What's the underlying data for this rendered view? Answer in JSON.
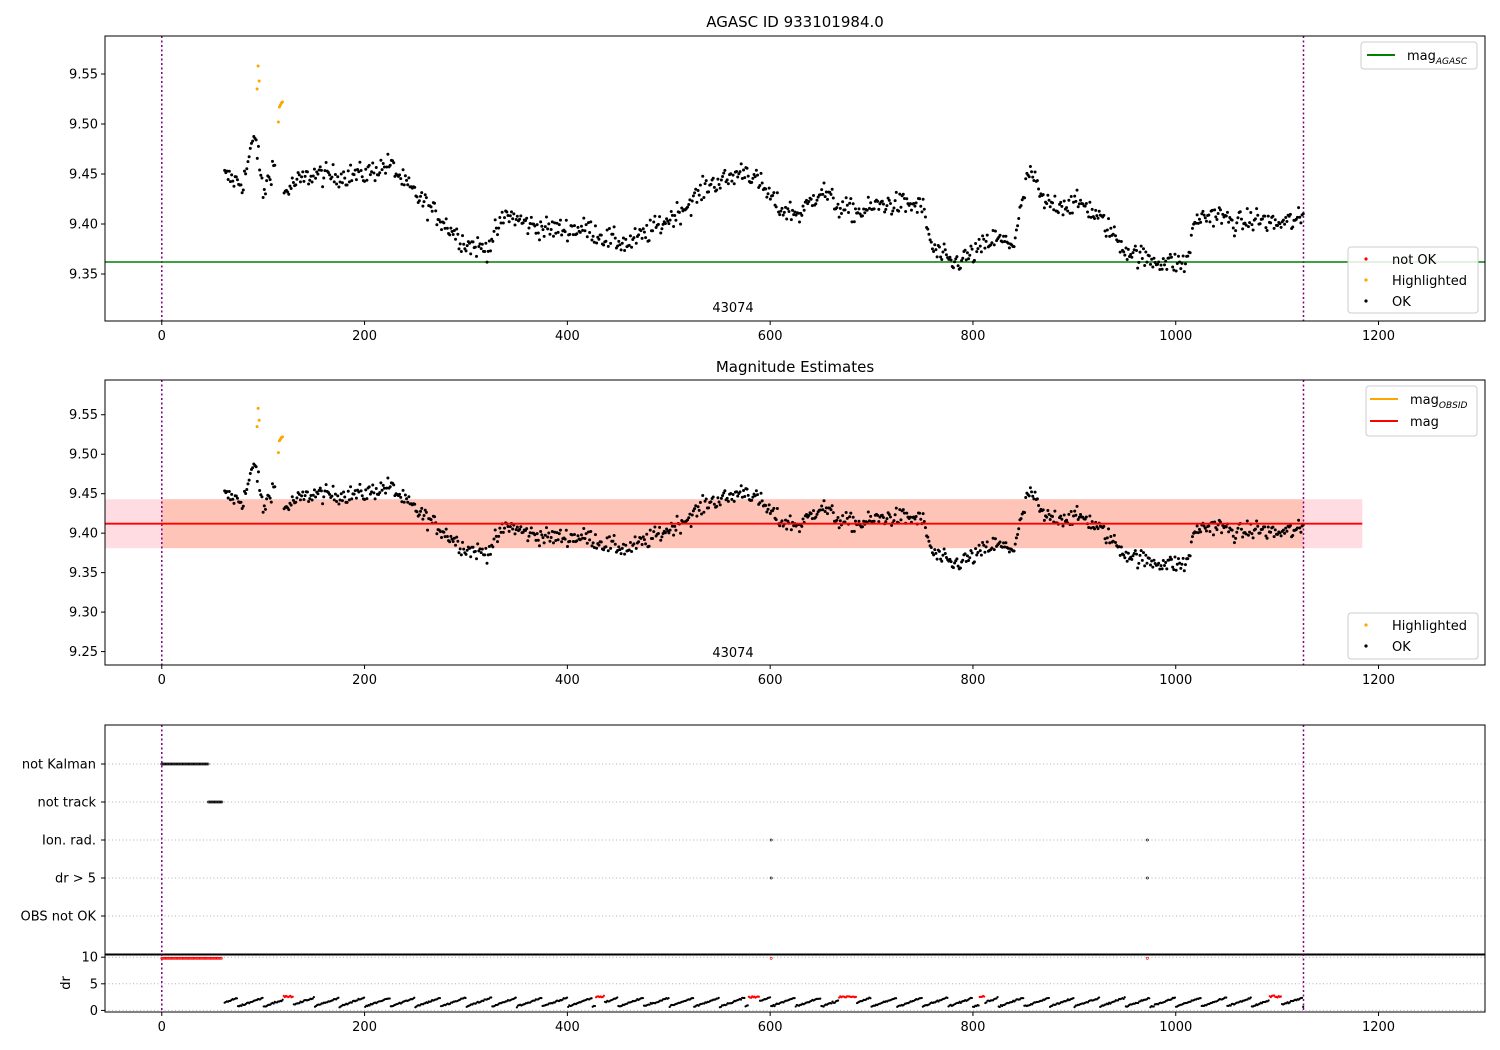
{
  "figure": {
    "title": "AGASC ID 933101984.0",
    "subtitle": "Magnitude Estimates"
  },
  "chart_data": [
    {
      "id": "p1",
      "type": "scatter",
      "title": "AGASC ID 933101984.0",
      "xlim": [
        -56,
        1305
      ],
      "ylim": [
        9.303,
        9.588
      ],
      "xticks": [
        0,
        200,
        400,
        600,
        800,
        1000,
        1200
      ],
      "yticks": [
        9.35,
        9.4,
        9.45,
        9.5,
        9.55
      ],
      "grid": false,
      "obsid_label": "43074",
      "obs_bounds": [
        0,
        1126
      ],
      "hlines": [
        {
          "name": "mag_AGASC",
          "y": 9.362,
          "color": "#008000"
        }
      ],
      "legend_top": {
        "position": "top-right",
        "entries": [
          {
            "label": "mag",
            "sub": "AGASC",
            "kind": "line",
            "color": "#008000"
          }
        ]
      },
      "legend_bottom": {
        "position": "lower-right",
        "entries": [
          {
            "label": "not OK",
            "kind": "dot",
            "color": "#ff0000"
          },
          {
            "label": "Highlighted",
            "kind": "dot",
            "color": "#ffa500"
          },
          {
            "label": "OK",
            "kind": "dot",
            "color": "#000000"
          }
        ]
      },
      "series": [
        {
          "name": "Highlighted",
          "color": "#ffa500",
          "x": [
            94,
            95,
            96,
            115,
            116,
            117,
            118,
            119
          ],
          "y": [
            9.535,
            9.558,
            9.543,
            9.502,
            9.517,
            9.519,
            9.521,
            9.522
          ]
        },
        {
          "name": "OK",
          "color": "#000000",
          "x": [],
          "y": []
        }
      ],
      "trend": {
        "x": [
          62,
          80,
          92,
          100,
          110,
          120,
          130,
          150,
          170,
          200,
          225,
          240,
          260,
          280,
          300,
          320,
          340,
          360,
          380,
          400,
          420,
          440,
          460,
          480,
          500,
          520,
          540,
          560,
          575,
          590,
          610,
          630,
          650,
          670,
          690,
          710,
          730,
          750,
          760,
          780,
          800,
          820,
          840,
          856,
          870,
          890,
          910,
          930,
          950,
          970,
          990,
          1010,
          1020,
          1040,
          1060,
          1080,
          1100,
          1126
        ],
        "y": [
          9.448,
          9.44,
          9.49,
          9.43,
          9.46,
          9.43,
          9.44,
          9.45,
          9.448,
          9.45,
          9.46,
          9.44,
          9.42,
          9.4,
          9.38,
          9.375,
          9.41,
          9.4,
          9.395,
          9.395,
          9.395,
          9.385,
          9.38,
          9.392,
          9.405,
          9.42,
          9.44,
          9.445,
          9.455,
          9.44,
          9.415,
          9.41,
          9.435,
          9.415,
          9.412,
          9.42,
          9.42,
          9.418,
          9.375,
          9.36,
          9.37,
          9.385,
          9.38,
          9.455,
          9.42,
          9.42,
          9.42,
          9.4,
          9.375,
          9.365,
          9.362,
          9.36,
          9.405,
          9.41,
          9.4,
          9.405,
          9.4,
          9.405
        ],
        "noise": 0.011
      }
    },
    {
      "id": "p2",
      "type": "scatter",
      "title": "Magnitude Estimates",
      "xlim": [
        -56,
        1305
      ],
      "ylim": [
        9.233,
        9.594
      ],
      "xticks": [
        0,
        200,
        400,
        600,
        800,
        1000,
        1200
      ],
      "yticks": [
        9.25,
        9.3,
        9.35,
        9.4,
        9.45,
        9.5,
        9.55
      ],
      "grid": false,
      "obsid_label": "43074",
      "obs_bounds": [
        0,
        1126
      ],
      "mag": {
        "y": 9.412,
        "band_low": 9.381,
        "band_high": 9.443,
        "color": "#ff0000",
        "band_color": "#ffc0cb",
        "band_x": [
          -56,
          1184
        ]
      },
      "mag_obsid": {
        "y": 9.412,
        "band_low": 9.381,
        "band_high": 9.443,
        "color": "#ffa500",
        "band_color": "#ffa07a",
        "band_x": [
          0,
          1126
        ]
      },
      "legend_top": {
        "position": "top-right",
        "entries": [
          {
            "label": "mag",
            "sub": "OBSID",
            "kind": "line",
            "color": "#ffa500"
          },
          {
            "label": "mag",
            "kind": "line",
            "color": "#ff0000"
          }
        ]
      },
      "legend_bottom": {
        "position": "lower-right",
        "entries": [
          {
            "label": "Highlighted",
            "kind": "dot",
            "color": "#ffa500"
          },
          {
            "label": "OK",
            "kind": "dot",
            "color": "#000000"
          }
        ]
      }
    },
    {
      "id": "p3",
      "type": "scatter",
      "xlim": [
        -56,
        1305
      ],
      "flags": [
        {
          "label": "not Kalman",
          "x_range": [
            0,
            46
          ],
          "x_points": []
        },
        {
          "label": "not track",
          "x_range": [
            46,
            60
          ],
          "x_points": []
        },
        {
          "label": "Ion. rad.",
          "x_range": null,
          "x_points": [
            601,
            972
          ]
        },
        {
          "label": "dr > 5",
          "x_range": null,
          "x_points": [
            601,
            972
          ]
        },
        {
          "label": "OBS not OK",
          "x_range": null,
          "x_points": []
        }
      ],
      "obs_bounds": [
        0,
        1126
      ]
    },
    {
      "id": "p4",
      "type": "scatter",
      "xlim": [
        -56,
        1305
      ],
      "ylim": [
        -0.3,
        10.6
      ],
      "xticks": [
        0,
        200,
        400,
        600,
        800,
        1000,
        1200
      ],
      "yticks": [
        0,
        5,
        10
      ],
      "ylabel": "dr",
      "obs_bounds": [
        0,
        1126
      ],
      "high_segment": {
        "x_range": [
          0,
          60
        ],
        "y": 9.8
      },
      "spikes": [
        601,
        972
      ],
      "red_segments": [
        [
          120,
          130
        ],
        [
          428,
          437
        ],
        [
          578,
          590
        ],
        [
          668,
          685
        ],
        [
          806,
          812
        ],
        [
          1092,
          1104
        ]
      ]
    }
  ]
}
